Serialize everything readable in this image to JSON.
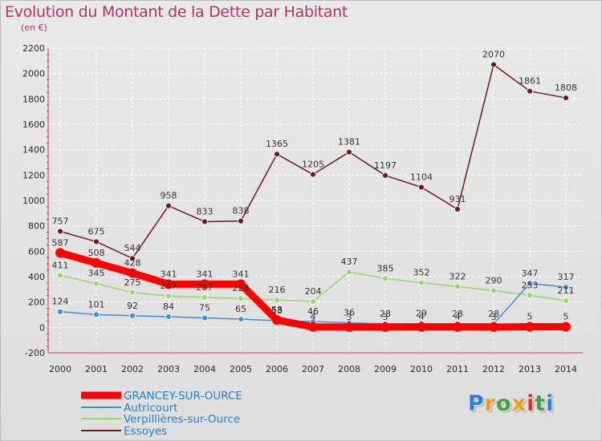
{
  "chart_data": {
    "type": "line",
    "title": "Evolution du Montant de la Dette par Habitant",
    "subtitle": "(en €)",
    "x": [
      "2000",
      "2001",
      "2002",
      "2003",
      "2004",
      "2005",
      "2006",
      "2007",
      "2008",
      "2009",
      "2010",
      "2011",
      "2012",
      "2013",
      "2014"
    ],
    "ylim": [
      -200,
      2200
    ],
    "yticks": [
      -200,
      0,
      200,
      400,
      600,
      800,
      1000,
      1200,
      1400,
      1600,
      1800,
      2000,
      2200
    ],
    "grid": true,
    "legend_position": "bottom-left",
    "series": [
      {
        "name": "GRANCEY-SUR-OURCE",
        "color": "#ff0000",
        "values": [
          587,
          508,
          428,
          341,
          341,
          341,
          58,
          4,
          3,
          3,
          4,
          4,
          3,
          5,
          5
        ],
        "labels": [
          "587",
          "508",
          "428",
          "341",
          "341",
          "341",
          "58",
          "4",
          "3",
          "3",
          "4",
          "4",
          "3",
          "5",
          "5"
        ]
      },
      {
        "name": "Autricourt",
        "color": "#3d8fd6",
        "values": [
          124,
          101,
          92,
          84,
          75,
          65,
          53,
          46,
          36,
          28,
          29,
          28,
          28,
          347,
          317
        ],
        "labels": [
          "124",
          "101",
          "92",
          "84",
          "75",
          "65",
          "53",
          "46",
          "36",
          "28",
          "29",
          "28",
          "28",
          "347",
          "317"
        ]
      },
      {
        "name": "Verpillières-sur-Ource",
        "color": "#99d966",
        "values": [
          411,
          345,
          275,
          247,
          237,
          228,
          216,
          204,
          437,
          385,
          352,
          322,
          290,
          253,
          211
        ],
        "labels": [
          "411",
          "345",
          "275",
          "247",
          "237",
          "228",
          "216",
          "204",
          "437",
          "385",
          "352",
          "322",
          "290",
          "253",
          "211"
        ]
      },
      {
        "name": "Essoyes",
        "color": "#6e1a1a",
        "values": [
          757,
          675,
          544,
          958,
          833,
          838,
          1365,
          1205,
          1381,
          1197,
          1104,
          931,
          2070,
          1861,
          1808
        ],
        "labels": [
          "757",
          "675",
          "544",
          "958",
          "833",
          "838",
          "1365",
          "1205",
          "1381",
          "1197",
          "1104",
          "931",
          "2070",
          "1861",
          "1808"
        ]
      }
    ]
  },
  "logo": {
    "letters": [
      "P",
      "r",
      "o",
      "x",
      "i",
      "t",
      "i"
    ],
    "colors": [
      "#2f7fd0",
      "#f39a1f",
      "#3aa640",
      "#f39a1f",
      "#d9362f",
      "#3aa640",
      "#2f7fd0"
    ]
  }
}
